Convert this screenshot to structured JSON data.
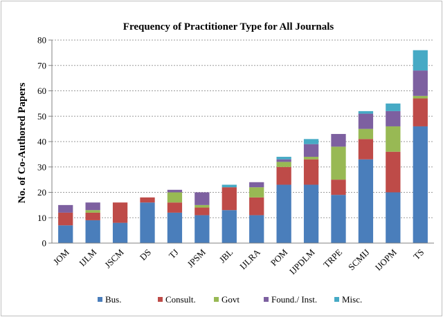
{
  "chart_data": {
    "type": "bar",
    "stacked": true,
    "title": "Frequency of Practitioner Type for All Journals",
    "xlabel": "",
    "ylabel": "No. of Co-Authored Papers",
    "ylim": [
      0,
      80
    ],
    "yticks": [
      0,
      10,
      20,
      30,
      40,
      50,
      60,
      70,
      80
    ],
    "grid": "horizontal dashed",
    "legend_position": "bottom",
    "categories": [
      "JOM",
      "IJLM",
      "JSCM",
      "DS",
      "TJ",
      "JPSM",
      "JBL",
      "IJLRA",
      "POM",
      "IJPDLM",
      "TRPE",
      "SCMIJ",
      "IJOPM",
      "TS"
    ],
    "series": [
      {
        "name": "Bus.",
        "color": "#4a7ebb",
        "values": [
          7,
          9,
          8,
          16,
          12,
          11,
          13,
          11,
          23,
          23,
          19,
          33,
          20,
          46
        ]
      },
      {
        "name": "Consult.",
        "color": "#be4b48",
        "values": [
          5,
          3,
          8,
          2,
          4,
          3,
          9,
          7,
          7,
          10,
          6,
          8,
          16,
          11
        ]
      },
      {
        "name": "Govt",
        "color": "#98b954",
        "values": [
          0,
          1,
          0,
          0,
          4,
          1,
          0,
          4,
          2,
          1,
          13,
          4,
          10,
          1
        ]
      },
      {
        "name": "Found./ Inst.",
        "color": "#7d60a0",
        "values": [
          3,
          3,
          0,
          0,
          1,
          5,
          0,
          2,
          1,
          5,
          5,
          6,
          6,
          10
        ]
      },
      {
        "name": "Misc.",
        "color": "#46aac5",
        "values": [
          0,
          0,
          0,
          0,
          0,
          0,
          1,
          0,
          1,
          2,
          0,
          1,
          3,
          8
        ]
      }
    ]
  }
}
